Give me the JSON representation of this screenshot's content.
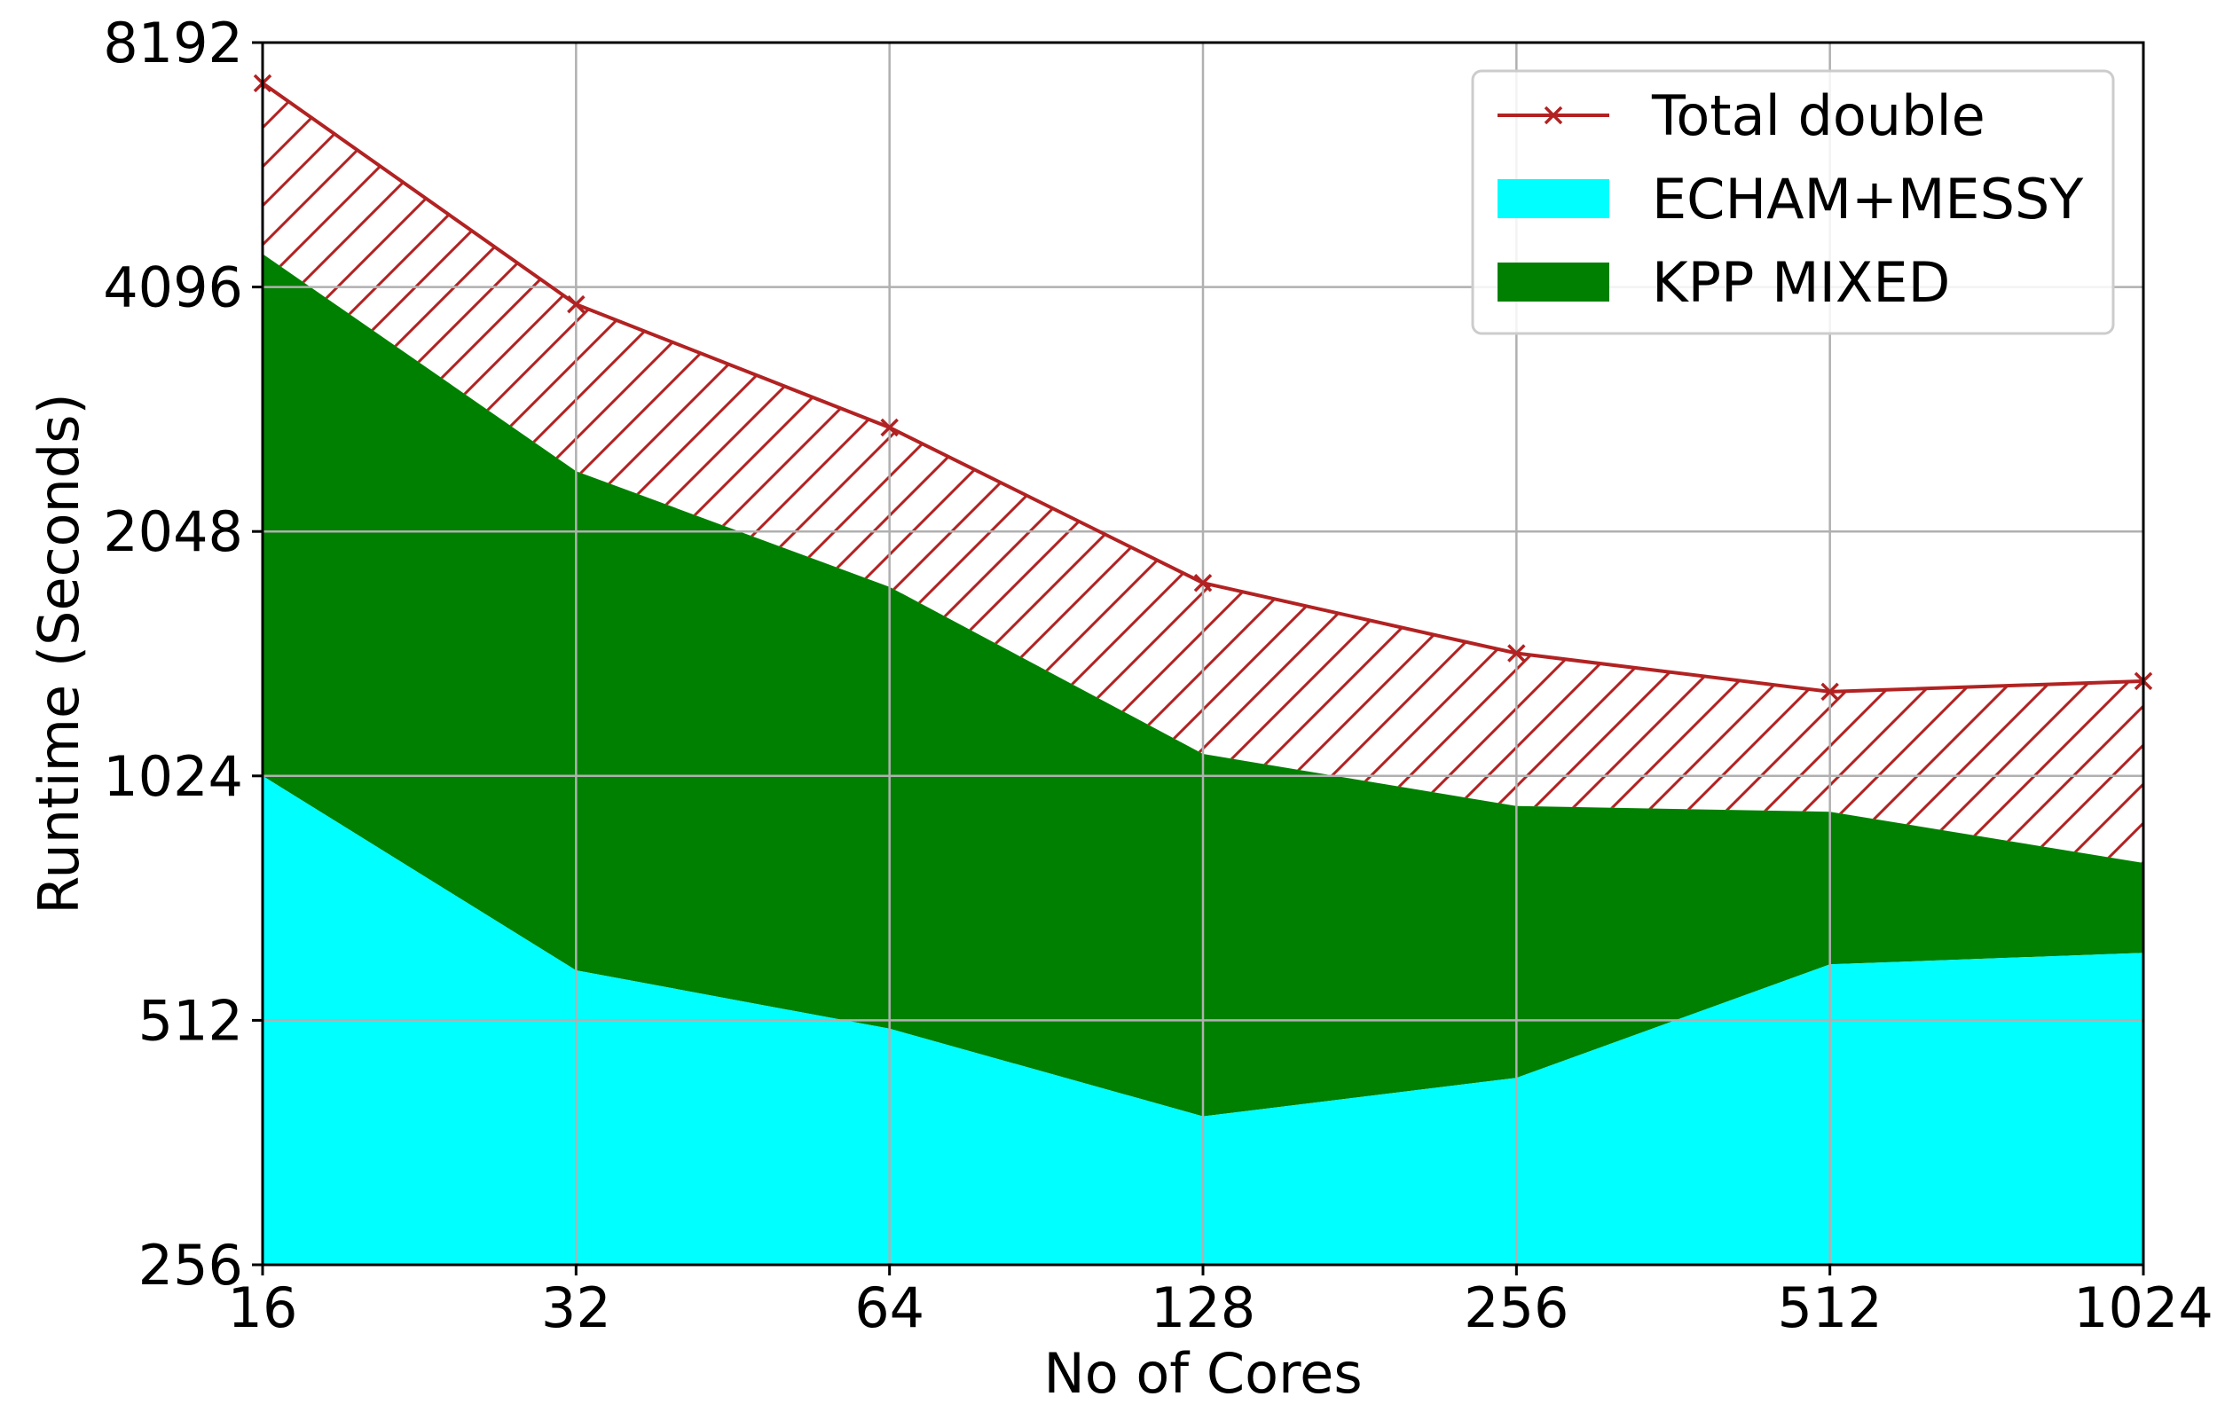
{
  "chart_data": {
    "type": "area",
    "title": "",
    "xlabel": "No of Cores",
    "ylabel": "Runtime (Seconds)",
    "xscale": "log2",
    "yscale": "log2",
    "x": [
      16,
      32,
      64,
      128,
      256,
      512,
      1024
    ],
    "x_tick_labels": [
      "16",
      "32",
      "64",
      "128",
      "256",
      "512",
      "1024"
    ],
    "y_ticks": [
      256,
      512,
      1024,
      2048,
      4096,
      8192
    ],
    "y_tick_labels": [
      "256",
      "512",
      "1024",
      "2048",
      "4096",
      "8192"
    ],
    "xlim": [
      16,
      1024
    ],
    "ylim": [
      256,
      8192
    ],
    "grid": true,
    "legend_position": "top-right",
    "series": [
      {
        "name": "Total double",
        "kind": "line-marker-x",
        "color": "#b22222",
        "values": [
          7300,
          3900,
          2750,
          1770,
          1450,
          1300,
          1340
        ]
      },
      {
        "name": "ECHAM+MESSY",
        "kind": "stacked-area",
        "color": "#00ffff",
        "values": [
          1024,
          590,
          500,
          390,
          435,
          600,
          620
        ]
      },
      {
        "name": "KPP MIXED",
        "kind": "stacked-area",
        "color": "#008000",
        "values": [
          4500,
          2430,
          1750,
          1090,
          940,
          925,
          800
        ]
      }
    ]
  }
}
